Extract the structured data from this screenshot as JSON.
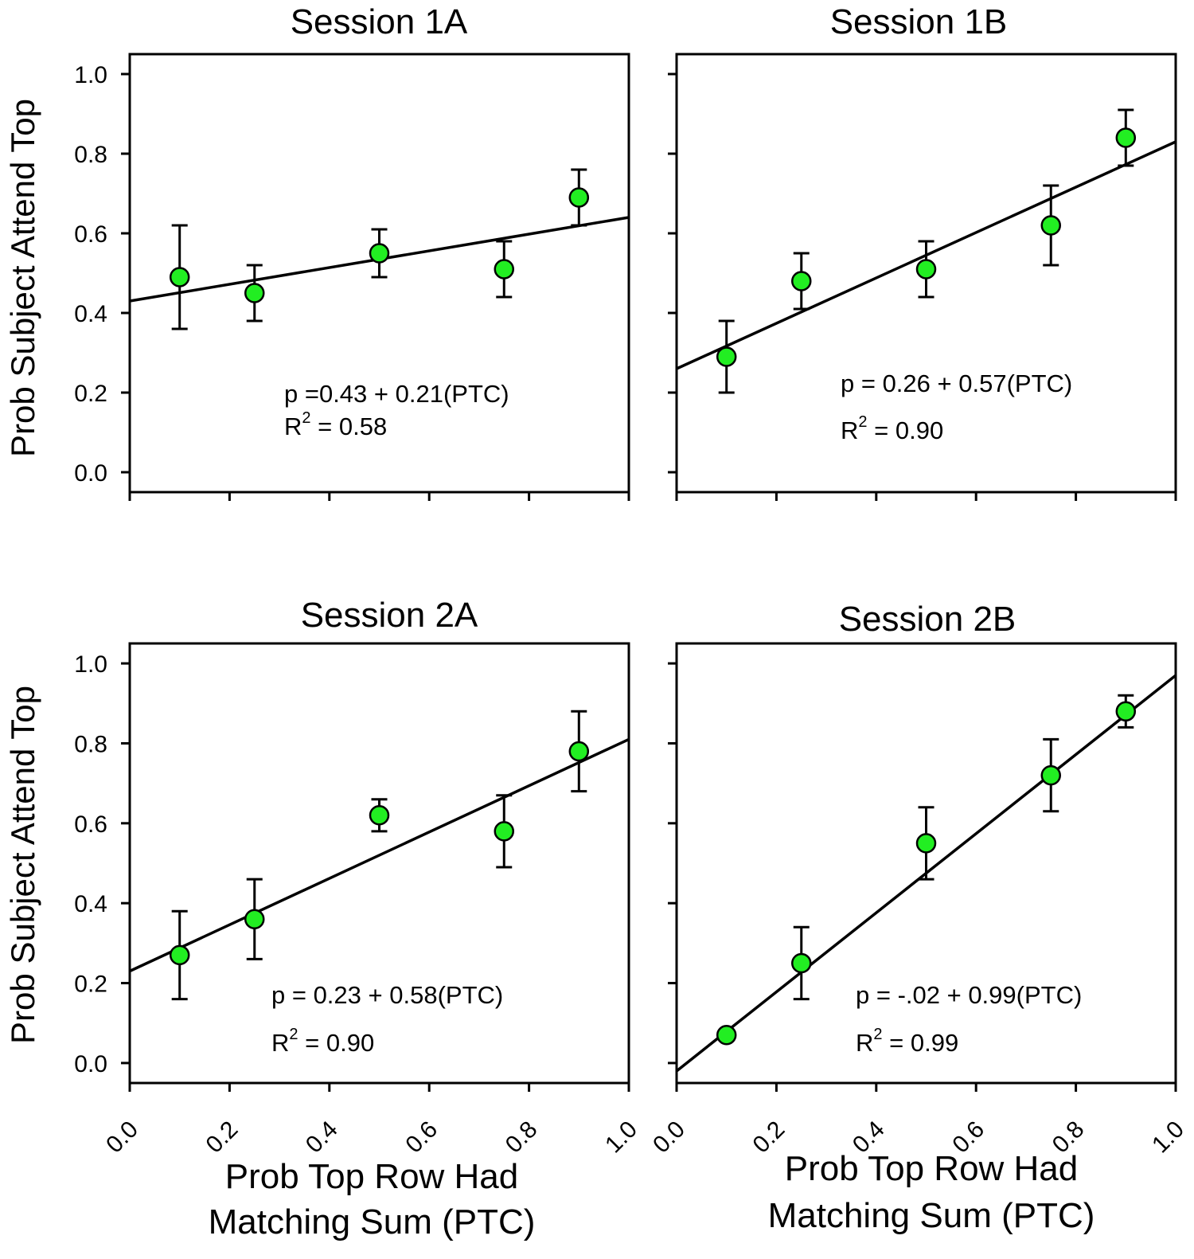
{
  "figure": {
    "y_axis_label": "Prob Subject Attend Top",
    "x_axis_label_line1": "Prob Top Row Had",
    "x_axis_label_line2": "Matching Sum (PTC)",
    "marker_color": "#22ee22",
    "marker_edge_color": "#000000",
    "line_color": "#000000"
  },
  "chart_data": [
    {
      "type": "scatter",
      "title": "Session 1A",
      "xlim": [
        0.0,
        1.0
      ],
      "ylim": [
        -0.05,
        1.05
      ],
      "x_ticks": [
        "0.0",
        "0.2",
        "0.4",
        "0.6",
        "0.8",
        "1.0"
      ],
      "y_ticks": [
        "0.0",
        "0.2",
        "0.4",
        "0.6",
        "0.8",
        "1.0"
      ],
      "x_tick_labels_shown": false,
      "y_tick_labels_shown": true,
      "xlabel": "",
      "ylabel": "Prob Subject Attend Top",
      "points": [
        {
          "x": 0.1,
          "y": 0.49,
          "err_low": 0.13,
          "err_high": 0.13
        },
        {
          "x": 0.25,
          "y": 0.45,
          "err_low": 0.07,
          "err_high": 0.07
        },
        {
          "x": 0.5,
          "y": 0.55,
          "err_low": 0.06,
          "err_high": 0.06
        },
        {
          "x": 0.75,
          "y": 0.51,
          "err_low": 0.07,
          "err_high": 0.07
        },
        {
          "x": 0.9,
          "y": 0.69,
          "err_low": 0.07,
          "err_high": 0.07
        }
      ],
      "fit": {
        "intercept": 0.43,
        "slope": 0.21
      },
      "equation": "p =0.43 + 0.21(PTC)",
      "r2_prefix": "R",
      "r2_exp": "2",
      "r2_value": " = 0.58"
    },
    {
      "type": "scatter",
      "title": "Session 1B",
      "xlim": [
        0.0,
        1.0
      ],
      "ylim": [
        -0.05,
        1.05
      ],
      "x_ticks": [
        "0.0",
        "0.2",
        "0.4",
        "0.6",
        "0.8",
        "1.0"
      ],
      "y_ticks": [
        "0.0",
        "0.2",
        "0.4",
        "0.6",
        "0.8",
        "1.0"
      ],
      "x_tick_labels_shown": false,
      "y_tick_labels_shown": false,
      "xlabel": "",
      "ylabel": "",
      "points": [
        {
          "x": 0.1,
          "y": 0.29,
          "err_low": 0.09,
          "err_high": 0.09
        },
        {
          "x": 0.25,
          "y": 0.48,
          "err_low": 0.07,
          "err_high": 0.07
        },
        {
          "x": 0.5,
          "y": 0.51,
          "err_low": 0.07,
          "err_high": 0.07
        },
        {
          "x": 0.75,
          "y": 0.62,
          "err_low": 0.1,
          "err_high": 0.1
        },
        {
          "x": 0.9,
          "y": 0.84,
          "err_low": 0.07,
          "err_high": 0.07
        }
      ],
      "fit": {
        "intercept": 0.26,
        "slope": 0.57
      },
      "equation": "p = 0.26 + 0.57(PTC)",
      "r2_prefix": "R",
      "r2_exp": "2",
      "r2_value": "  = 0.90"
    },
    {
      "type": "scatter",
      "title": "Session 2A",
      "xlim": [
        0.0,
        1.0
      ],
      "ylim": [
        -0.05,
        1.05
      ],
      "x_ticks": [
        "0.0",
        "0.2",
        "0.4",
        "0.6",
        "0.8",
        "1.0"
      ],
      "y_ticks": [
        "0.0",
        "0.2",
        "0.4",
        "0.6",
        "0.8",
        "1.0"
      ],
      "x_tick_labels_shown": true,
      "y_tick_labels_shown": true,
      "xlabel": "Prob Top Row Had Matching Sum (PTC)",
      "ylabel": "Prob Subject Attend Top",
      "points": [
        {
          "x": 0.1,
          "y": 0.27,
          "err_low": 0.11,
          "err_high": 0.11
        },
        {
          "x": 0.25,
          "y": 0.36,
          "err_low": 0.1,
          "err_high": 0.1
        },
        {
          "x": 0.5,
          "y": 0.62,
          "err_low": 0.04,
          "err_high": 0.04
        },
        {
          "x": 0.75,
          "y": 0.58,
          "err_low": 0.09,
          "err_high": 0.09
        },
        {
          "x": 0.9,
          "y": 0.78,
          "err_low": 0.1,
          "err_high": 0.1
        }
      ],
      "fit": {
        "intercept": 0.23,
        "slope": 0.58
      },
      "equation": "p = 0.23 + 0.58(PTC)",
      "r2_prefix": "R",
      "r2_exp": "2",
      "r2_value": "  = 0.90"
    },
    {
      "type": "scatter",
      "title": "Session 2B",
      "xlim": [
        0.0,
        1.0
      ],
      "ylim": [
        -0.05,
        1.05
      ],
      "x_ticks": [
        "0.0",
        "0.2",
        "0.4",
        "0.6",
        "0.8",
        "1.0"
      ],
      "y_ticks": [
        "0.0",
        "0.2",
        "0.4",
        "0.6",
        "0.8",
        "1.0"
      ],
      "x_tick_labels_shown": true,
      "y_tick_labels_shown": false,
      "xlabel": "Prob Top Row Had Matching Sum (PTC)",
      "ylabel": "",
      "points": [
        {
          "x": 0.1,
          "y": 0.07,
          "err_low": 0.01,
          "err_high": 0.01
        },
        {
          "x": 0.25,
          "y": 0.25,
          "err_low": 0.09,
          "err_high": 0.09
        },
        {
          "x": 0.5,
          "y": 0.55,
          "err_low": 0.09,
          "err_high": 0.09
        },
        {
          "x": 0.75,
          "y": 0.72,
          "err_low": 0.09,
          "err_high": 0.09
        },
        {
          "x": 0.9,
          "y": 0.88,
          "err_low": 0.04,
          "err_high": 0.04
        }
      ],
      "fit": {
        "intercept": -0.02,
        "slope": 0.99
      },
      "equation": "p = -.02 + 0.99(PTC)",
      "r2_prefix": "R",
      "r2_exp": "2",
      "r2_value": "  = 0.99"
    }
  ]
}
